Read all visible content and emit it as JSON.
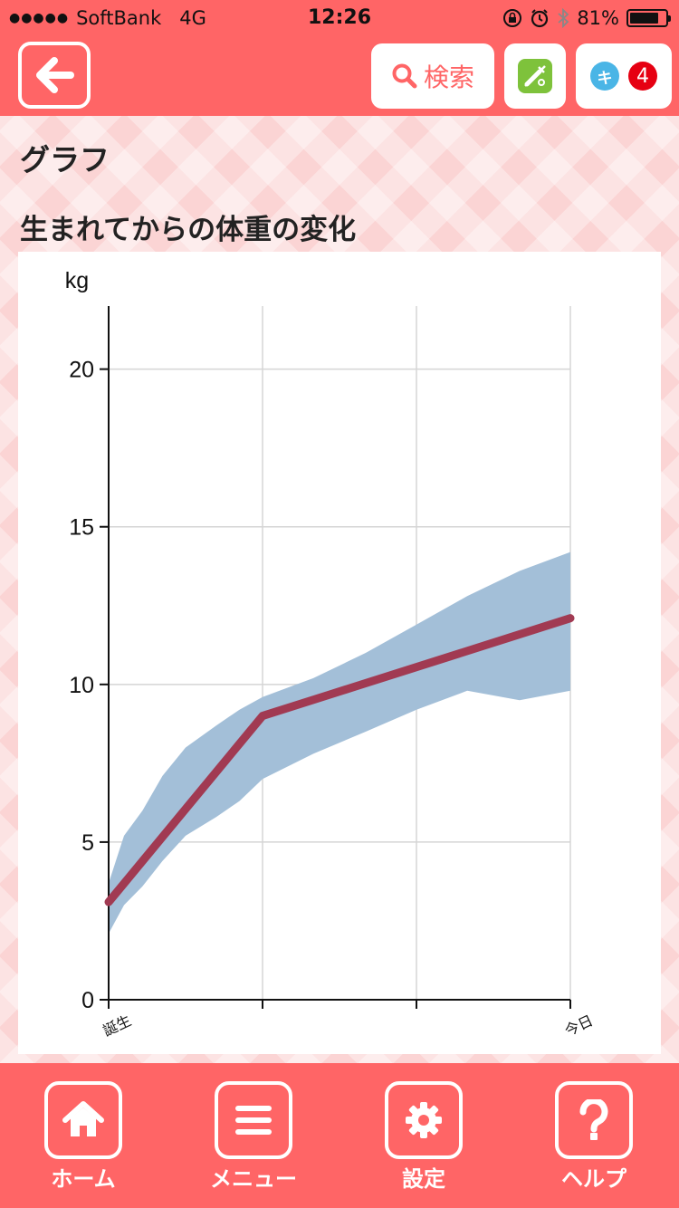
{
  "status_bar": {
    "signal": "●●●●●",
    "carrier": "SoftBank",
    "network": "4G",
    "time": "12:26",
    "battery_percent": "81%",
    "battery_level": 0.81,
    "icons": [
      "rotation-lock-icon",
      "alarm-icon",
      "bluetooth-icon",
      "battery-icon"
    ]
  },
  "header": {
    "back_icon": "arrow-left-icon",
    "search_label": "検索",
    "search_icon": "magnifier-icon",
    "vaccine_icon": "syringe-icon",
    "ki_label": "キ",
    "badge_count": "4"
  },
  "page": {
    "title": "グラフ",
    "section_title": "生まれてからの体重の変化"
  },
  "chart_data": {
    "type": "area",
    "ylabel": "kg",
    "ylim": [
      0,
      22
    ],
    "yticks": [
      "0",
      "5",
      "10",
      "15",
      "20"
    ],
    "x_tick_labels": [
      "誕生",
      "",
      "",
      "今日"
    ],
    "grid": true,
    "x": [
      0,
      0.1,
      0.22,
      0.35,
      0.5,
      0.7,
      0.85,
      1.0,
      1.33,
      1.67,
      2.0,
      2.33,
      2.67,
      3.0
    ],
    "range_upper": [
      3.7,
      5.2,
      6.0,
      7.1,
      8.0,
      8.7,
      9.2,
      9.6,
      10.2,
      11.0,
      11.9,
      12.8,
      13.6,
      14.2
    ],
    "range_lower": [
      2.1,
      3.0,
      3.6,
      4.4,
      5.2,
      5.8,
      6.3,
      7.0,
      7.8,
      8.5,
      9.2,
      9.8,
      9.5,
      9.8
    ],
    "series": [
      {
        "x": [
          0,
          1,
          3
        ],
        "values": [
          3.1,
          9.0,
          12.1
        ]
      }
    ],
    "colors": {
      "band": "#a3bfd8",
      "line": "#a13a52",
      "grid": "#d5d5d5",
      "axis": "#111111"
    }
  },
  "bottom_nav": {
    "items": [
      {
        "label": "ホーム",
        "icon": "home-icon"
      },
      {
        "label": "メニュー",
        "icon": "menu-icon"
      },
      {
        "label": "設定",
        "icon": "gear-icon"
      },
      {
        "label": "ヘルプ",
        "icon": "question-icon"
      }
    ]
  },
  "colors": {
    "accent": "#ff6566",
    "background": "#fbd4d4"
  }
}
